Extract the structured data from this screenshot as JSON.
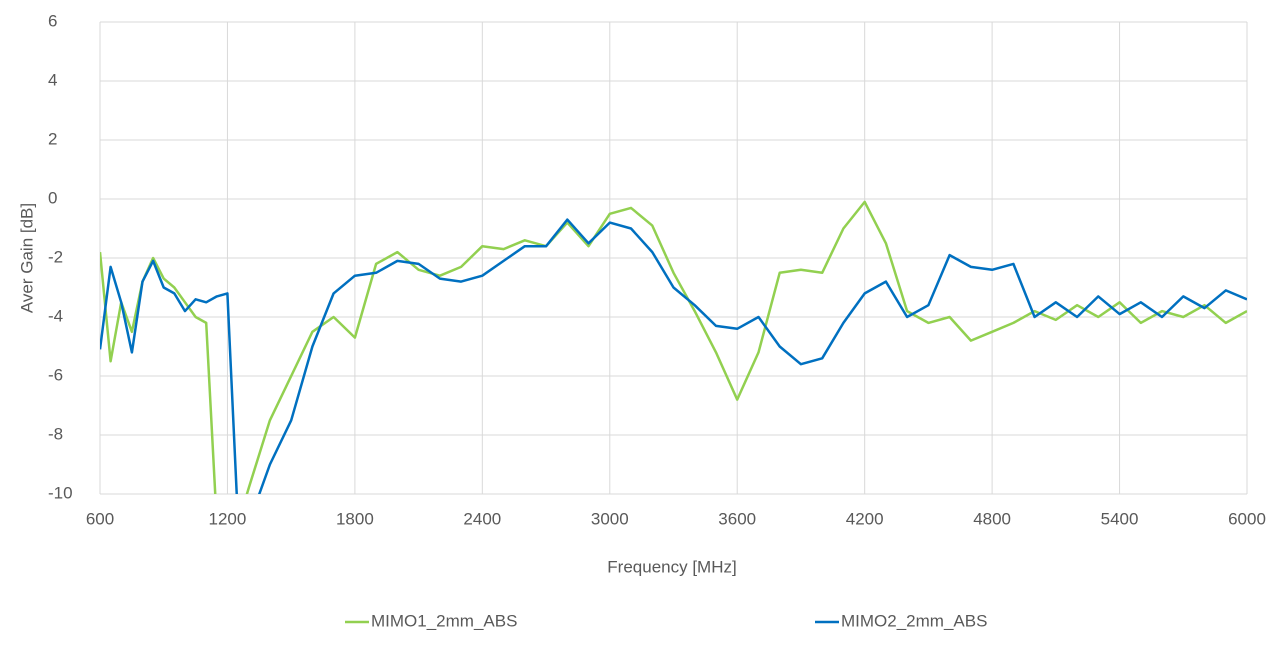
{
  "chart_data": {
    "type": "line",
    "x_label": "Frequency [MHz]",
    "y_label": "Aver Gain [dB]",
    "x": [
      600,
      650,
      700,
      750,
      800,
      850,
      900,
      950,
      1000,
      1050,
      1100,
      1150,
      1200,
      1250,
      1300,
      1400,
      1500,
      1600,
      1700,
      1800,
      1900,
      2000,
      2100,
      2200,
      2300,
      2400,
      2500,
      2600,
      2700,
      2800,
      2900,
      3000,
      3100,
      3200,
      3300,
      3400,
      3500,
      3600,
      3700,
      3800,
      3900,
      4000,
      4100,
      4200,
      4300,
      4400,
      4500,
      4600,
      4700,
      4800,
      4900,
      5000,
      5100,
      5200,
      5300,
      5400,
      5500,
      5600,
      5700,
      5800,
      5900,
      6000
    ],
    "series": [
      {
        "name": "MIMO1_2mm_ABS",
        "color": "#92d050",
        "values": [
          -1.8,
          -5.5,
          -3.5,
          -4.5,
          -2.8,
          -2,
          -2.7,
          -3,
          -3.5,
          -4,
          -4.2,
          -11,
          -11,
          -11,
          -9.8,
          -7.5,
          -6,
          -4.5,
          -4,
          -4.7,
          -2.2,
          -1.8,
          -2.4,
          -2.6,
          -2.3,
          -1.6,
          -1.7,
          -1.4,
          -1.6,
          -0.8,
          -1.6,
          -0.5,
          -0.3,
          -0.9,
          -2.5,
          -3.8,
          -5.2,
          -6.8,
          -5.2,
          -2.5,
          -2.4,
          -2.5,
          -1,
          -0.1,
          -1.5,
          -3.8,
          -4.2,
          -4,
          -4.8,
          -4.5,
          -4.2,
          -3.8,
          -4.1,
          -3.6,
          -4,
          -3.5,
          -4.2,
          -3.8,
          -4,
          -3.6,
          -4.2,
          -3.8
        ]
      },
      {
        "name": "MIMO2_2mm_ABS",
        "color": "#0070c0",
        "values": [
          -5.1,
          -2.3,
          -3.5,
          -5.2,
          -2.8,
          -2.1,
          -3,
          -3.2,
          -3.8,
          -3.4,
          -3.5,
          -3.3,
          -3.2,
          -11,
          -11,
          -9,
          -7.5,
          -5,
          -3.2,
          -2.6,
          -2.5,
          -2.1,
          -2.2,
          -2.7,
          -2.8,
          -2.6,
          -2.1,
          -1.6,
          -1.6,
          -0.7,
          -1.5,
          -0.8,
          -1,
          -1.8,
          -3,
          -3.6,
          -4.3,
          -4.4,
          -4,
          -5,
          -5.6,
          -5.4,
          -4.2,
          -3.2,
          -2.8,
          -4,
          -3.6,
          -1.9,
          -2.3,
          -2.4,
          -2.2,
          -4,
          -3.5,
          -4,
          -3.3,
          -3.9,
          -3.5,
          -4,
          -3.3,
          -3.7,
          -3.1,
          -3.4
        ]
      }
    ],
    "xlim": [
      600,
      6000
    ],
    "xticks": [
      600,
      1200,
      1800,
      2400,
      3000,
      3600,
      4200,
      4800,
      5400,
      6000
    ],
    "ylim": [
      -10,
      6
    ],
    "yticks": [
      -10,
      -8,
      -6,
      -4,
      -2,
      0,
      2,
      4,
      6
    ],
    "grid": true,
    "legend": "bottom"
  }
}
